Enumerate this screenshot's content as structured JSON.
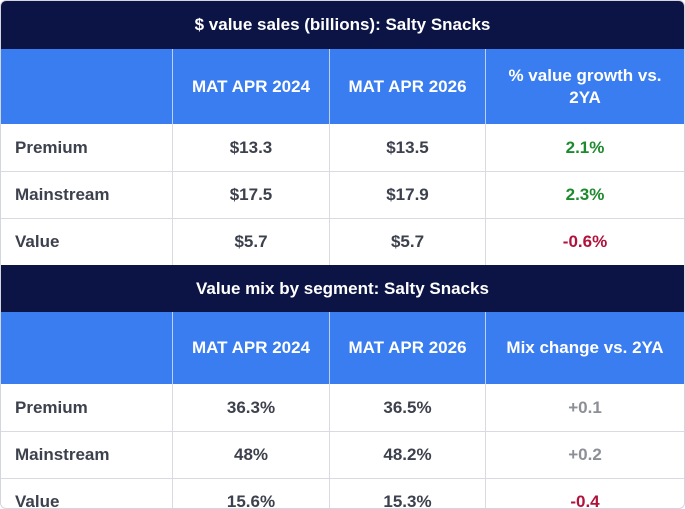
{
  "colors": {
    "title_bg": "#0c1446",
    "header_bg": "#3a7df0",
    "positive": "#1e8a2e",
    "negative": "#b0123c",
    "neutral": "#8c8f96"
  },
  "table1": {
    "title": "$ value sales (billions): Salty Snacks",
    "headers": [
      "",
      "MAT APR 2024",
      "MAT APR 2026",
      "% value growth vs. 2YA"
    ],
    "rows": [
      {
        "label": "Premium",
        "v2024": "$13.3",
        "v2026": "$13.5",
        "change": "2.1%"
      },
      {
        "label": "Mainstream",
        "v2024": "$17.5",
        "v2026": "$17.9",
        "change": "2.3%"
      },
      {
        "label": "Value",
        "v2024": "$5.7",
        "v2026": "$5.7",
        "change": "-0.6%"
      }
    ]
  },
  "table2": {
    "title": "Value mix by segment: Salty Snacks",
    "headers": [
      "",
      "MAT APR 2024",
      "MAT APR 2026",
      "Mix change vs. 2YA"
    ],
    "rows": [
      {
        "label": "Premium",
        "v2024": "36.3%",
        "v2026": "36.5%",
        "change": "+0.1"
      },
      {
        "label": "Mainstream",
        "v2024": "48%",
        "v2026": "48.2%",
        "change": "+0.2"
      },
      {
        "label": "Value",
        "v2024": "15.6%",
        "v2026": "15.3%",
        "change": "-0.4"
      }
    ]
  }
}
